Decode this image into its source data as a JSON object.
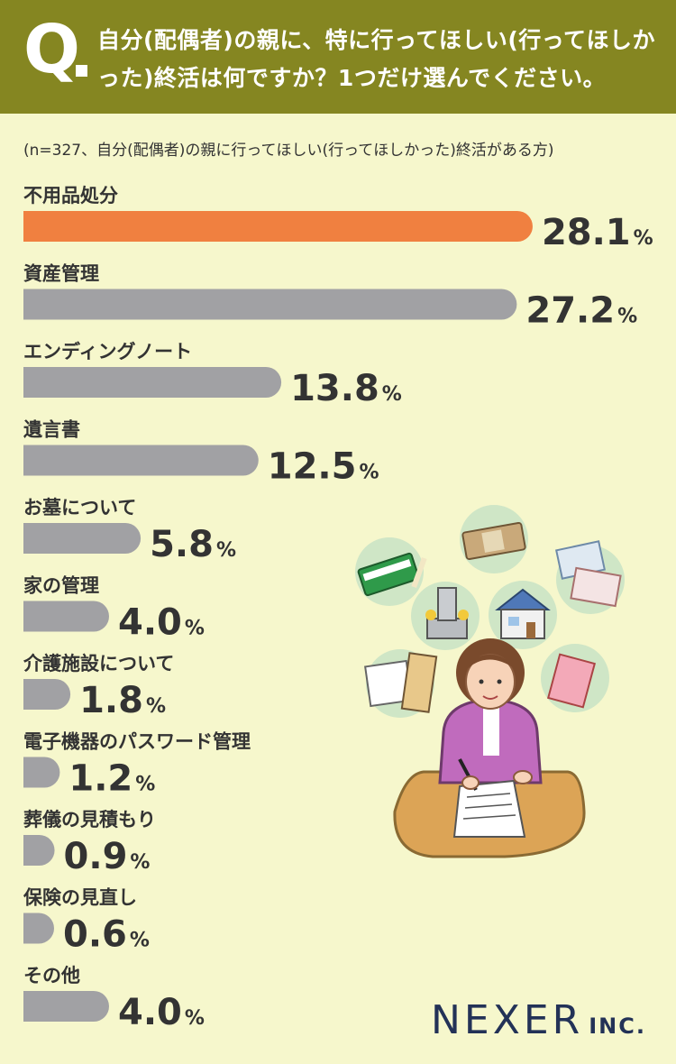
{
  "header": {
    "q_mark": "Q",
    "question": "自分(配偶者)の親に、特に行ってほしい(行ってほしかった)終活は何ですか？1つだけ選んでください。"
  },
  "note": "(n=327、自分(配偶者)の親に行ってほしい(行ってほしかった)終活がある方)",
  "logo": {
    "name": "NEXER",
    "suffix": "INC."
  },
  "colors": {
    "header_bg": "#858621",
    "background": "#f6f7cc",
    "highlight": "#f08040",
    "bar": "#a1a1a4",
    "logo": "#233257"
  },
  "chart_data": {
    "type": "bar",
    "orientation": "horizontal",
    "unit": "%",
    "categories": [
      "不用品処分",
      "資産管理",
      "エンディングノート",
      "遺言書",
      "お墓について",
      "家の管理",
      "介護施設について",
      "電子機器のパスワード管理",
      "葬儀の見積もり",
      "保険の見直し",
      "その他"
    ],
    "values": [
      28.1,
      27.2,
      13.8,
      12.5,
      5.8,
      4.0,
      1.8,
      1.2,
      0.9,
      0.6,
      4.0
    ],
    "labels": [
      "28.1",
      "27.2",
      "13.8",
      "12.5",
      "5.8",
      "4.0",
      "1.8",
      "1.2",
      "0.9",
      "0.6",
      "4.0"
    ],
    "highlight_index": 0
  }
}
